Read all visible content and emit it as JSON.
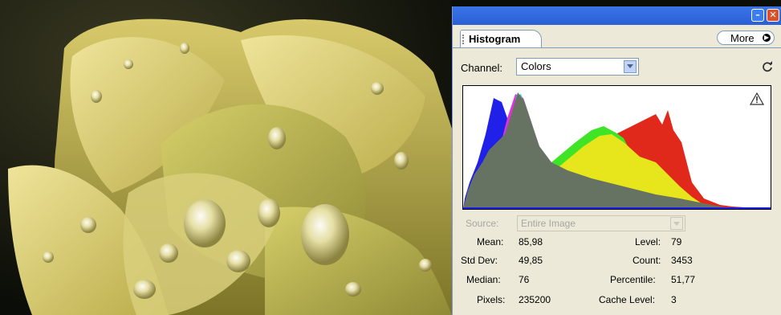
{
  "panel": {
    "tab_title": "Histogram",
    "more_label": "More",
    "minimize_icon": "minimize-icon",
    "close_icon": "close-icon"
  },
  "channel": {
    "label": "Channel:",
    "value": "Colors"
  },
  "source": {
    "label": "Source:",
    "value": "Entire Image"
  },
  "stats": {
    "mean_label": "Mean:",
    "mean_value": "85,98",
    "stddev_label": "Std Dev:",
    "stddev_value": "49,85",
    "median_label": "Median:",
    "median_value": "76",
    "pixels_label": "Pixels:",
    "pixels_value": "235200",
    "level_label": "Level:",
    "level_value": "79",
    "count_label": "Count:",
    "count_value": "3453",
    "percentile_label": "Percentile:",
    "percentile_value": "51,77",
    "cache_label": "Cache Level:",
    "cache_value": "3"
  },
  "icons": [
    "refresh-icon",
    "warning-icon",
    "dropdown-arrow-icon",
    "more-arrow-icon"
  ],
  "colors": {
    "titlebar": "#2a5fd6",
    "panel_bg": "#ece9d8",
    "hist_gray": "#667363",
    "hist_yellow": "#e7e61c",
    "hist_red": "#e0291b",
    "hist_green": "#3fe426",
    "hist_blue": "#2020e8",
    "hist_magenta": "#e030e0",
    "hist_cyan": "#20e0e0"
  }
}
